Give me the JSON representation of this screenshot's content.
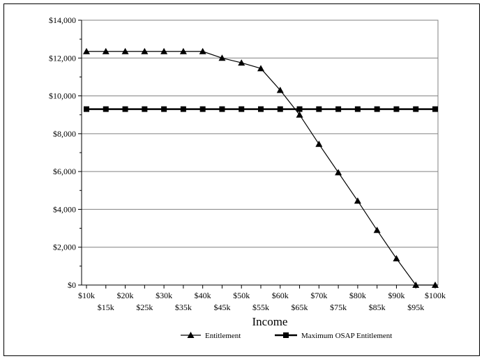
{
  "chart_data": {
    "type": "line",
    "title": "",
    "xlabel": "Income",
    "ylabel": "",
    "categories": [
      "$10k",
      "$15k",
      "$20k",
      "$25k",
      "$30k",
      "$35k",
      "$40k",
      "$45k",
      "$50k",
      "$55k",
      "$60k",
      "$65k",
      "$70k",
      "$75k",
      "$80k",
      "$85k",
      "$90k",
      "$95k",
      "$100k"
    ],
    "y_ticks": [
      "$0",
      "$2,000",
      "$4,000",
      "$6,000",
      "$8,000",
      "$10,000",
      "$12,000",
      "$14,000"
    ],
    "ylim": [
      0,
      14000
    ],
    "grid": "horizontal",
    "legend_position": "bottom",
    "series": [
      {
        "name": "Entitlement",
        "marker": "triangle",
        "color": "#000000",
        "values": [
          12350,
          12350,
          12350,
          12350,
          12350,
          12350,
          12350,
          12000,
          11750,
          11450,
          10300,
          9000,
          7450,
          5950,
          4450,
          2900,
          1400,
          0,
          0
        ]
      },
      {
        "name": "Maximum OSAP Entitlement",
        "marker": "square",
        "color": "#000000",
        "values": [
          9300,
          9300,
          9300,
          9300,
          9300,
          9300,
          9300,
          9300,
          9300,
          9300,
          9300,
          9300,
          9300,
          9300,
          9300,
          9300,
          9300,
          9300,
          9300
        ]
      }
    ]
  }
}
